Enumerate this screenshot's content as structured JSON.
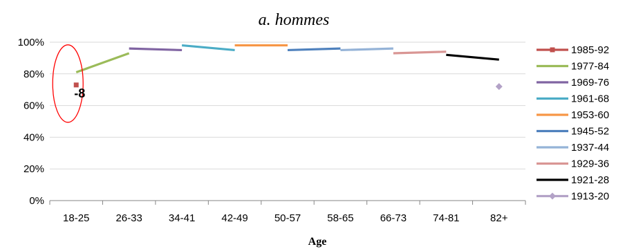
{
  "chart_data": {
    "type": "line",
    "title": "a. hommes",
    "xlabel": "Age",
    "ylabel": "",
    "categories": [
      "18-25",
      "26-33",
      "34-41",
      "42-49",
      "50-57",
      "58-65",
      "66-73",
      "74-81",
      "82+"
    ],
    "ylim": [
      0,
      100
    ],
    "yticks": [
      "0%",
      "20%",
      "40%",
      "60%",
      "80%",
      "100%"
    ],
    "grid": true,
    "legend_position": "right",
    "series": [
      {
        "name": "1985-92",
        "color": "#c0504d",
        "marker": "square",
        "points": [
          [
            0,
            73
          ]
        ]
      },
      {
        "name": "1977-84",
        "color": "#9bbb59",
        "marker": "none",
        "points": [
          [
            0,
            81
          ],
          [
            1,
            93
          ]
        ]
      },
      {
        "name": "1969-76",
        "color": "#8064a2",
        "marker": "none",
        "points": [
          [
            1,
            96
          ],
          [
            2,
            95
          ]
        ]
      },
      {
        "name": "1961-68",
        "color": "#4bacc6",
        "marker": "none",
        "points": [
          [
            2,
            98
          ],
          [
            3,
            95
          ]
        ]
      },
      {
        "name": "1953-60",
        "color": "#f79646",
        "marker": "none",
        "points": [
          [
            3,
            98
          ],
          [
            4,
            98
          ]
        ]
      },
      {
        "name": "1945-52",
        "color": "#4f81bd",
        "marker": "none",
        "points": [
          [
            4,
            95
          ],
          [
            5,
            96
          ]
        ]
      },
      {
        "name": "1937-44",
        "color": "#95b3d7",
        "marker": "none",
        "points": [
          [
            5,
            95
          ],
          [
            6,
            96
          ]
        ]
      },
      {
        "name": "1929-36",
        "color": "#d99694",
        "marker": "none",
        "points": [
          [
            6,
            93
          ],
          [
            7,
            94
          ]
        ]
      },
      {
        "name": "1921-28",
        "color": "#000000",
        "marker": "none",
        "points": [
          [
            7,
            92
          ],
          [
            8,
            89
          ]
        ]
      },
      {
        "name": "1913-20",
        "color": "#b3a2c7",
        "marker": "diamond",
        "points": [
          [
            8,
            72
          ]
        ]
      }
    ],
    "annotations": [
      {
        "text": "-8",
        "category": 0,
        "y": 73,
        "shape": "ellipse",
        "color": "#ff0000"
      }
    ]
  }
}
